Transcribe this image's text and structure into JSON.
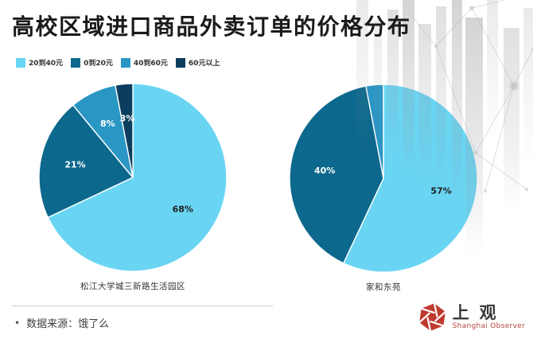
{
  "page": {
    "title": "高校区域进口商品外卖订单的价格分布"
  },
  "legend": {
    "items": [
      {
        "label": "20到40元",
        "color": "#69d5f3"
      },
      {
        "label": "0到20元",
        "color": "#0c688c"
      },
      {
        "label": "40到60元",
        "color": "#2a96c4"
      },
      {
        "label": "60元以上",
        "color": "#0b3e5e"
      }
    ]
  },
  "chart_data": [
    {
      "type": "pie",
      "title": "松江大学城三新路生活园区",
      "start_angle": "top",
      "direction": "clockwise",
      "label_position": "inside",
      "slices": [
        {
          "label": "20到40元",
          "value": 68,
          "display": "68%",
          "color": "#69d5f3",
          "text_color": "#1f1f1f",
          "show_label": true
        },
        {
          "label": "0到20元",
          "value": 21,
          "display": "21%",
          "color": "#0c688c",
          "text_color": "#ffffff",
          "show_label": true
        },
        {
          "label": "40到60元",
          "value": 8,
          "display": "8%",
          "color": "#2a96c4",
          "text_color": "#ffffff",
          "show_label": true
        },
        {
          "label": "60元以上",
          "value": 3,
          "display": "3%",
          "color": "#0b3e5e",
          "text_color": "#ffffff",
          "show_label": true
        }
      ]
    },
    {
      "type": "pie",
      "title": "家和东苑",
      "start_angle": "top",
      "direction": "clockwise",
      "label_position": "inside",
      "slices": [
        {
          "label": "20到40元",
          "value": 57,
          "display": "57%",
          "color": "#69d5f3",
          "text_color": "#1f1f1f",
          "show_label": true
        },
        {
          "label": "0到20元",
          "value": 40,
          "display": "40%",
          "color": "#0c688c",
          "text_color": "#ffffff",
          "show_label": true
        },
        {
          "label": "40到60元",
          "value": 3,
          "display": "",
          "color": "#2a96c4",
          "text_color": "#ffffff",
          "show_label": false
        }
      ]
    }
  ],
  "footer": {
    "bullet": "•",
    "source_label": "数据来源：饿了么"
  },
  "logo": {
    "cn": "上观",
    "en": "Shanghai Observer",
    "accent_color": "#bf3a2f"
  }
}
